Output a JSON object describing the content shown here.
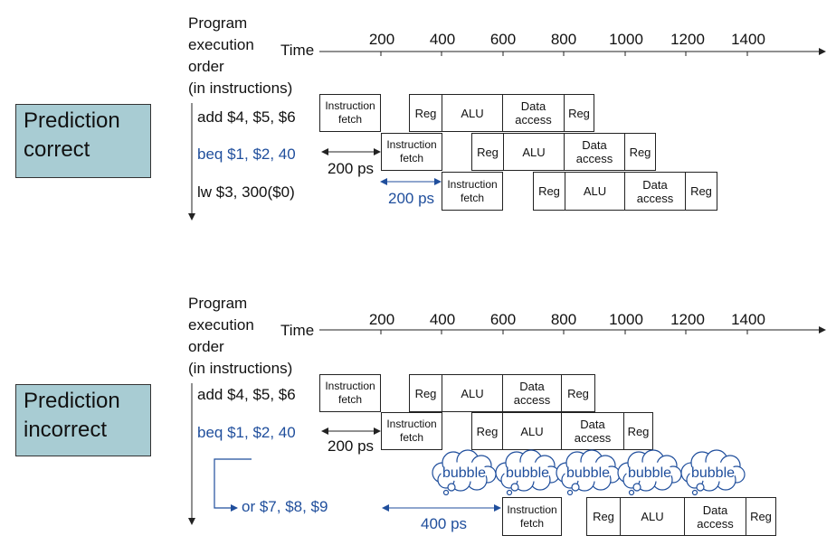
{
  "colors": {
    "label_box": "#a8ccd3",
    "blue": "#1f4e9c",
    "line": "#222222"
  },
  "axis_labels": {
    "program_order": [
      "Program",
      "execution",
      "order",
      "(in instructions)"
    ],
    "time": "Time",
    "ticks": [
      "200",
      "400",
      "600",
      "800",
      "1000",
      "1200",
      "1400"
    ]
  },
  "stages": {
    "if": [
      "Instruction",
      "fetch"
    ],
    "reg": "Reg",
    "alu": "ALU",
    "mem": [
      "Data",
      "access"
    ]
  },
  "top": {
    "label": [
      "Prediction",
      "correct"
    ],
    "instructions": [
      "add $4, $5, $6",
      "beq $1, $2, 40",
      "lw  $3, 300($0)"
    ],
    "delay1": "200 ps",
    "delay2": "200 ps"
  },
  "bottom": {
    "label": [
      "Prediction",
      "incorrect"
    ],
    "instructions": [
      "add $4, $5, $6",
      "beq $1, $2, 40",
      "or $7, $8, $9"
    ],
    "delay1": "200 ps",
    "delay2": "400 ps",
    "bubble": "bubble"
  }
}
